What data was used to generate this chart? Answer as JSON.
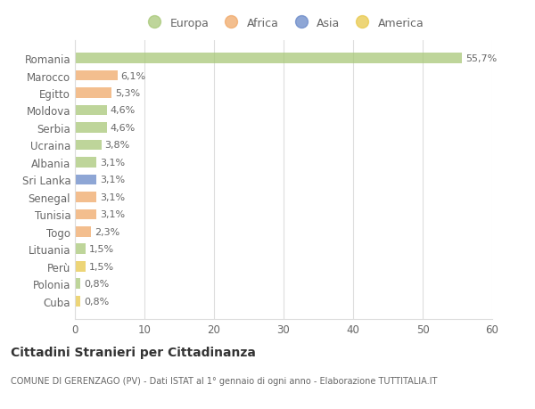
{
  "categories": [
    "Cuba",
    "Polonia",
    "Perù",
    "Lituania",
    "Togo",
    "Tunisia",
    "Senegal",
    "Sri Lanka",
    "Albania",
    "Ucraina",
    "Serbia",
    "Moldova",
    "Egitto",
    "Marocco",
    "Romania"
  ],
  "values": [
    0.8,
    0.8,
    1.5,
    1.5,
    2.3,
    3.1,
    3.1,
    3.1,
    3.1,
    3.8,
    4.6,
    4.6,
    5.3,
    6.1,
    55.7
  ],
  "labels": [
    "0,8%",
    "0,8%",
    "1,5%",
    "1,5%",
    "2,3%",
    "3,1%",
    "3,1%",
    "3,1%",
    "3,1%",
    "3,8%",
    "4,6%",
    "4,6%",
    "5,3%",
    "6,1%",
    "55,7%"
  ],
  "colors": [
    "#e8c84a",
    "#a8c878",
    "#e8c84a",
    "#a8c878",
    "#f0a868",
    "#f0a868",
    "#f0a868",
    "#6888c8",
    "#a8c878",
    "#a8c878",
    "#a8c878",
    "#a8c878",
    "#f0a868",
    "#f0a868",
    "#a8c878"
  ],
  "legend_labels": [
    "Europa",
    "Africa",
    "Asia",
    "America"
  ],
  "legend_colors": [
    "#a8c878",
    "#f0a868",
    "#6888c8",
    "#e8c84a"
  ],
  "title": "Cittadini Stranieri per Cittadinanza",
  "subtitle": "COMUNE DI GERENZAGO (PV) - Dati ISTAT al 1° gennaio di ogni anno - Elaborazione TUTTITALIA.IT",
  "xlim": [
    0,
    60
  ],
  "xticks": [
    0,
    10,
    20,
    30,
    40,
    50,
    60
  ],
  "bg_color": "#ffffff",
  "bar_bg_color": "#ffffff",
  "grid_color": "#dddddd",
  "text_color": "#666666",
  "label_color": "#666666",
  "bar_alpha": 0.75
}
